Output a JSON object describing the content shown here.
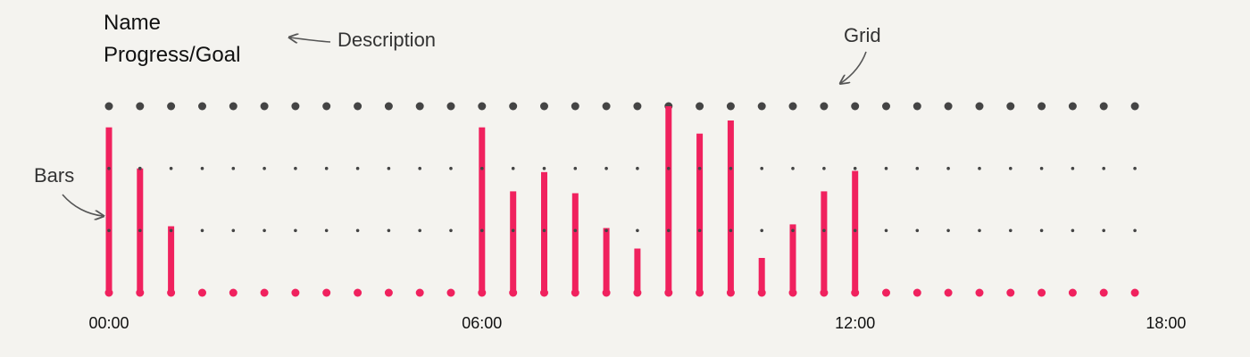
{
  "header": {
    "name": "Name",
    "progress_goal": "Progress/Goal"
  },
  "annotations": {
    "description": "Description",
    "grid": "Grid",
    "bars": "Bars"
  },
  "colors": {
    "background": "#f4f3ef",
    "bar": "#f0215e",
    "grid_dot": "#444444",
    "text": "#111111",
    "annotation": "#555555"
  },
  "chart_data": {
    "type": "bar",
    "x_tick_labels": [
      "00:00",
      "06:00",
      "12:00",
      "18:00"
    ],
    "x_tick_positions": [
      0,
      12,
      24,
      34
    ],
    "slot_count": 34,
    "ylim": [
      0,
      3
    ],
    "grid": true,
    "values": [
      2.66,
      2.0,
      1.07,
      0,
      0,
      0,
      0,
      0,
      0,
      0,
      0,
      0,
      2.66,
      1.63,
      1.94,
      1.6,
      1.04,
      0.71,
      3.0,
      2.56,
      2.77,
      0.56,
      1.1,
      1.63,
      1.96,
      0,
      0,
      0,
      0,
      0,
      0,
      0,
      0,
      0
    ]
  }
}
